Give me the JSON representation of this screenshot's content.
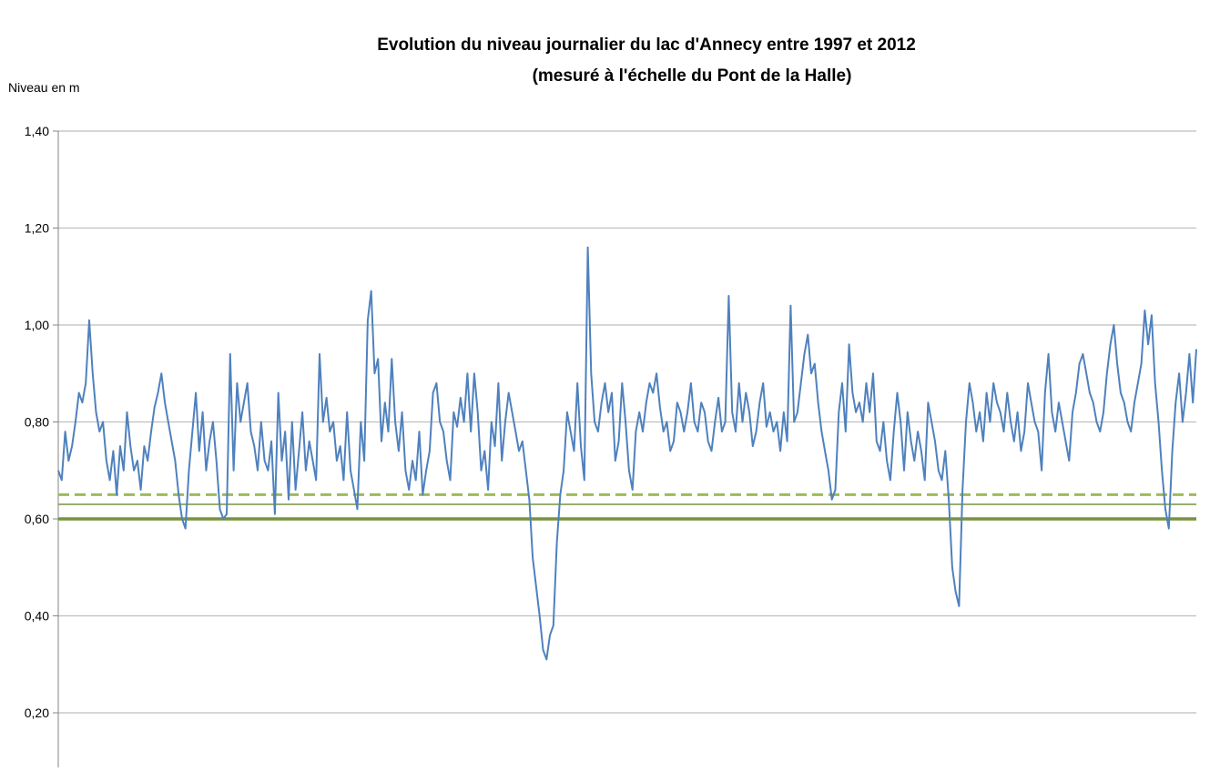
{
  "chart_data": {
    "type": "line",
    "title": "Evolution du niveau journalier du lac d'Annecy entre 1997 et 2012",
    "subtitle": "(mesuré à l'échelle du Pont de la Halle)",
    "ylabel": "Niveau en m",
    "xlabel": "",
    "ylim": [
      0.2,
      1.4
    ],
    "yticks": [
      "1,40",
      "1,20",
      "1,00",
      "0,80",
      "0,60",
      "0,40",
      "0,20"
    ],
    "ytick_values": [
      1.4,
      1.2,
      1.0,
      0.8,
      0.6,
      0.4,
      0.2
    ],
    "grid": true,
    "legend": "none",
    "reference_lines": [
      {
        "value": 0.65,
        "style": "dashed",
        "color": "#9bbb59"
      },
      {
        "value": 0.63,
        "style": "solid",
        "color": "#77933c"
      },
      {
        "value": 0.6,
        "style": "solid-thick",
        "color": "#77933c"
      }
    ],
    "series": [
      {
        "color": "#4f81bd",
        "values": [
          0.7,
          0.68,
          0.78,
          0.72,
          0.75,
          0.8,
          0.86,
          0.84,
          0.88,
          1.01,
          0.9,
          0.82,
          0.78,
          0.8,
          0.72,
          0.68,
          0.74,
          0.65,
          0.75,
          0.7,
          0.82,
          0.75,
          0.7,
          0.72,
          0.66,
          0.75,
          0.72,
          0.78,
          0.83,
          0.86,
          0.9,
          0.84,
          0.8,
          0.76,
          0.72,
          0.65,
          0.6,
          0.58,
          0.7,
          0.78,
          0.86,
          0.74,
          0.82,
          0.7,
          0.76,
          0.8,
          0.72,
          0.62,
          0.6,
          0.61,
          0.94,
          0.7,
          0.88,
          0.8,
          0.84,
          0.88,
          0.78,
          0.75,
          0.7,
          0.8,
          0.72,
          0.7,
          0.76,
          0.61,
          0.86,
          0.72,
          0.78,
          0.64,
          0.8,
          0.66,
          0.74,
          0.82,
          0.7,
          0.76,
          0.72,
          0.68,
          0.94,
          0.8,
          0.85,
          0.78,
          0.8,
          0.72,
          0.75,
          0.68,
          0.82,
          0.7,
          0.66,
          0.62,
          0.8,
          0.72,
          1.01,
          1.07,
          0.9,
          0.93,
          0.76,
          0.84,
          0.78,
          0.93,
          0.8,
          0.74,
          0.82,
          0.7,
          0.66,
          0.72,
          0.68,
          0.78,
          0.65,
          0.7,
          0.74,
          0.86,
          0.88,
          0.8,
          0.78,
          0.72,
          0.68,
          0.82,
          0.79,
          0.85,
          0.8,
          0.9,
          0.78,
          0.9,
          0.82,
          0.7,
          0.74,
          0.66,
          0.8,
          0.75,
          0.88,
          0.72,
          0.8,
          0.86,
          0.82,
          0.78,
          0.74,
          0.76,
          0.7,
          0.64,
          0.52,
          0.46,
          0.4,
          0.33,
          0.31,
          0.36,
          0.38,
          0.55,
          0.65,
          0.7,
          0.82,
          0.78,
          0.74,
          0.88,
          0.75,
          0.68,
          1.16,
          0.9,
          0.8,
          0.78,
          0.84,
          0.88,
          0.82,
          0.86,
          0.72,
          0.76,
          0.88,
          0.8,
          0.7,
          0.66,
          0.78,
          0.82,
          0.78,
          0.84,
          0.88,
          0.86,
          0.9,
          0.83,
          0.78,
          0.8,
          0.74,
          0.76,
          0.84,
          0.82,
          0.78,
          0.82,
          0.88,
          0.8,
          0.78,
          0.84,
          0.82,
          0.76,
          0.74,
          0.8,
          0.85,
          0.78,
          0.8,
          1.06,
          0.82,
          0.78,
          0.88,
          0.8,
          0.86,
          0.82,
          0.75,
          0.78,
          0.84,
          0.88,
          0.79,
          0.82,
          0.78,
          0.8,
          0.74,
          0.82,
          0.76,
          1.04,
          0.8,
          0.82,
          0.88,
          0.94,
          0.98,
          0.9,
          0.92,
          0.84,
          0.78,
          0.74,
          0.7,
          0.64,
          0.66,
          0.82,
          0.88,
          0.78,
          0.96,
          0.86,
          0.82,
          0.84,
          0.8,
          0.88,
          0.82,
          0.9,
          0.76,
          0.74,
          0.8,
          0.72,
          0.68,
          0.78,
          0.86,
          0.8,
          0.7,
          0.82,
          0.76,
          0.72,
          0.78,
          0.74,
          0.68,
          0.84,
          0.8,
          0.76,
          0.7,
          0.68,
          0.74,
          0.64,
          0.5,
          0.45,
          0.42,
          0.66,
          0.8,
          0.88,
          0.84,
          0.78,
          0.82,
          0.76,
          0.86,
          0.8,
          0.88,
          0.84,
          0.82,
          0.78,
          0.86,
          0.8,
          0.76,
          0.82,
          0.74,
          0.78,
          0.88,
          0.84,
          0.8,
          0.78,
          0.7,
          0.86,
          0.94,
          0.82,
          0.78,
          0.84,
          0.8,
          0.76,
          0.72,
          0.82,
          0.86,
          0.92,
          0.94,
          0.9,
          0.86,
          0.84,
          0.8,
          0.78,
          0.82,
          0.9,
          0.96,
          1.0,
          0.92,
          0.86,
          0.84,
          0.8,
          0.78,
          0.84,
          0.88,
          0.92,
          1.03,
          0.96,
          1.02,
          0.88,
          0.8,
          0.7,
          0.62,
          0.58,
          0.74,
          0.84,
          0.9,
          0.8,
          0.86,
          0.94,
          0.84,
          0.95
        ]
      }
    ]
  }
}
